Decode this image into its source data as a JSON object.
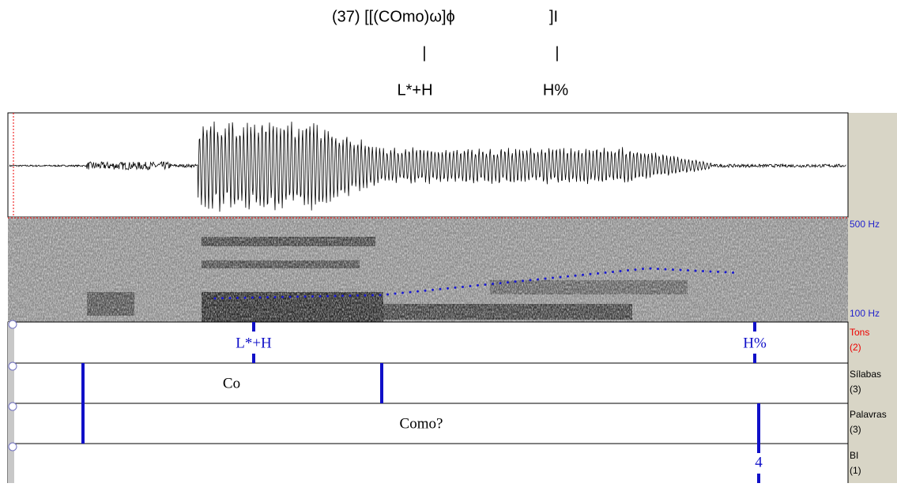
{
  "header": {
    "line1": "(37) [[(COmo)ω]ϕ",
    "line1_end": "]I",
    "bars": [
      "|",
      "|"
    ],
    "tones": [
      "L*+H",
      "H%"
    ]
  },
  "spectrogram": {
    "top_label": "500 Hz",
    "bottom_label": "100 Hz"
  },
  "tiers": [
    {
      "name": "Tons",
      "count": "(2)",
      "labels": [
        "L*+H",
        "H%"
      ]
    },
    {
      "name": "Sílabas",
      "count": "(3)",
      "labels": [
        "Co"
      ]
    },
    {
      "name": "Palavras",
      "count": "(3)",
      "labels": [
        "Como?"
      ]
    },
    {
      "name": "BI",
      "count": "(1)",
      "labels": [
        "4"
      ]
    }
  ]
}
